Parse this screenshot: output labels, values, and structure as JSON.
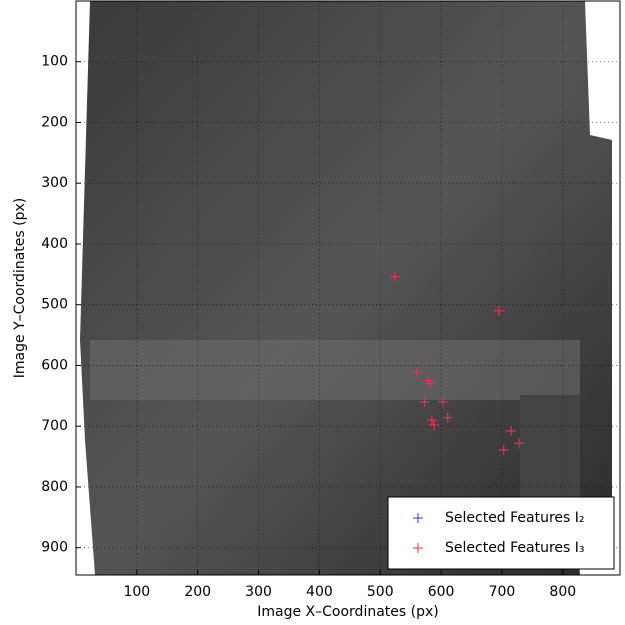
{
  "chart_data": {
    "type": "scatter",
    "xlabel": "Image X–Coordinates (px)",
    "ylabel": "Image Y–Coordinates (px)",
    "xlim": [
      0,
      894
    ],
    "ylim": [
      945,
      0
    ],
    "xticks": [
      100,
      200,
      300,
      400,
      500,
      600,
      700,
      800
    ],
    "yticks": [
      100,
      200,
      300,
      400,
      500,
      600,
      700,
      800,
      900
    ],
    "grid": true,
    "legend": "lower right",
    "series": [
      {
        "name": "Selected Features I₂",
        "color": "#3333ff",
        "x": [
          524,
          695,
          560,
          578,
          582,
          573,
          603,
          611,
          585,
          588,
          715,
          728,
          703
        ],
        "values": [
          454,
          510,
          611,
          625,
          630,
          660,
          660,
          686,
          690,
          698,
          708,
          728,
          739
        ]
      },
      {
        "name": "Selected Features I₃",
        "color": "#ff3333",
        "x": [
          524,
          695,
          560,
          578,
          582,
          573,
          603,
          611,
          585,
          588,
          715,
          728,
          703
        ],
        "values": [
          454,
          510,
          611,
          625,
          630,
          660,
          660,
          686,
          690,
          698,
          708,
          728,
          739
        ]
      }
    ]
  }
}
